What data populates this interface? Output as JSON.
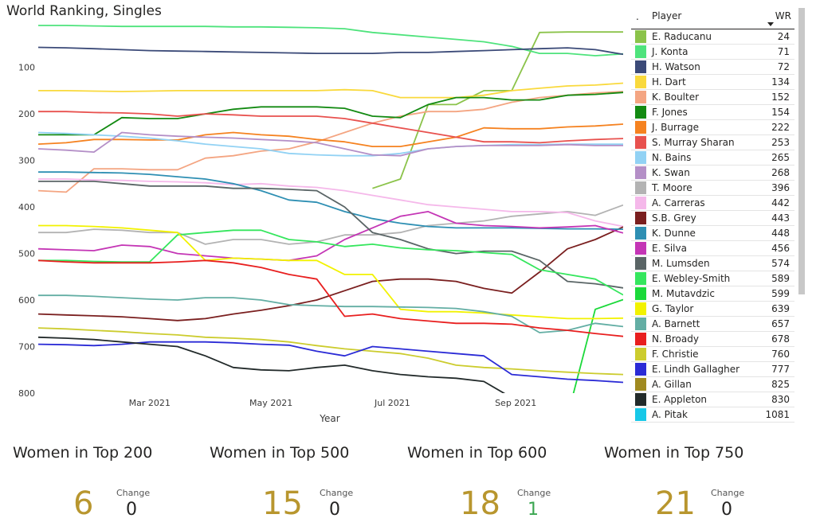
{
  "title": "World Ranking, Singles",
  "legend": {
    "dot_header": ".",
    "player_header": "Player",
    "value_header": "WR"
  },
  "chart_data": {
    "type": "line",
    "x_axis_title": "Year",
    "x_ticks": [
      "Mar 2021",
      "May 2021",
      "Jul 2021",
      "Sep 2021"
    ],
    "y_ticks": [
      100,
      200,
      300,
      400,
      500,
      600,
      700,
      800
    ],
    "y_reversed": true,
    "ylim": [
      800,
      0
    ],
    "x": [
      "2021-01-04",
      "2021-01-18",
      "2021-02-01",
      "2021-02-15",
      "2021-03-01",
      "2021-03-15",
      "2021-03-29",
      "2021-04-12",
      "2021-04-26",
      "2021-05-10",
      "2021-05-24",
      "2021-06-07",
      "2021-06-21",
      "2021-07-05",
      "2021-07-19",
      "2021-08-02",
      "2021-08-16",
      "2021-08-30",
      "2021-09-13",
      "2021-09-27",
      "2021-10-11",
      "2021-10-25"
    ],
    "series": [
      {
        "name": "E. Raducanu",
        "color": "#8bc34a",
        "wr": 24,
        "values": [
          null,
          null,
          null,
          null,
          null,
          null,
          null,
          null,
          null,
          null,
          null,
          null,
          360,
          340,
          180,
          180,
          150,
          150,
          25,
          24,
          24,
          24
        ]
      },
      {
        "name": "J. Konta",
        "color": "#4ee37c",
        "wr": 71,
        "values": [
          10,
          10,
          11,
          12,
          12,
          12,
          12,
          13,
          13,
          14,
          15,
          17,
          25,
          30,
          35,
          40,
          45,
          55,
          70,
          70,
          75,
          71
        ]
      },
      {
        "name": "H. Watson",
        "color": "#3b4a78",
        "wr": 72,
        "values": [
          57,
          58,
          60,
          62,
          64,
          65,
          66,
          67,
          68,
          69,
          70,
          70,
          70,
          68,
          68,
          66,
          64,
          62,
          60,
          58,
          62,
          72
        ]
      },
      {
        "name": "H. Dart",
        "color": "#f9d93c",
        "wr": 134,
        "values": [
          150,
          150,
          151,
          152,
          151,
          150,
          150,
          150,
          150,
          150,
          150,
          148,
          150,
          165,
          165,
          165,
          160,
          150,
          145,
          140,
          138,
          134
        ]
      },
      {
        "name": "K. Boulter",
        "color": "#f4a582",
        "wr": 152,
        "values": [
          365,
          368,
          318,
          318,
          320,
          320,
          295,
          290,
          280,
          275,
          260,
          240,
          220,
          205,
          195,
          195,
          190,
          175,
          165,
          160,
          155,
          152
        ]
      },
      {
        "name": "F. Jones",
        "color": "#138a12",
        "wr": 154,
        "values": [
          245,
          245,
          245,
          208,
          210,
          210,
          200,
          190,
          185,
          185,
          185,
          188,
          205,
          208,
          180,
          165,
          165,
          170,
          170,
          160,
          158,
          154
        ]
      },
      {
        "name": "J. Burrage",
        "color": "#f58220",
        "wr": 222,
        "values": [
          265,
          262,
          255,
          255,
          256,
          256,
          245,
          240,
          245,
          248,
          255,
          260,
          270,
          270,
          260,
          250,
          230,
          232,
          232,
          228,
          226,
          222
        ]
      },
      {
        "name": "S. Murray Sharan",
        "color": "#e8514e",
        "wr": 253,
        "values": [
          195,
          195,
          197,
          198,
          200,
          205,
          200,
          202,
          205,
          205,
          205,
          210,
          220,
          230,
          240,
          250,
          260,
          260,
          262,
          258,
          255,
          253
        ]
      },
      {
        "name": "N. Bains",
        "color": "#92d2f4",
        "wr": 265,
        "values": [
          240,
          242,
          245,
          248,
          252,
          258,
          265,
          270,
          275,
          285,
          288,
          290,
          290,
          285,
          275,
          270,
          268,
          266,
          266,
          265,
          265,
          265
        ]
      },
      {
        "name": "K. Swan",
        "color": "#b48fc7",
        "wr": 268,
        "values": [
          275,
          278,
          282,
          240,
          245,
          248,
          250,
          252,
          255,
          258,
          262,
          275,
          288,
          290,
          275,
          270,
          268,
          268,
          268,
          266,
          268,
          268
        ]
      },
      {
        "name": "T. Moore",
        "color": "#b3b3b3",
        "wr": 396,
        "values": [
          455,
          455,
          448,
          450,
          455,
          455,
          480,
          470,
          470,
          480,
          475,
          460,
          460,
          455,
          440,
          435,
          430,
          420,
          415,
          410,
          418,
          396
        ]
      },
      {
        "name": "A. Carreras",
        "color": "#f5b8ea",
        "wr": 442,
        "values": [
          340,
          340,
          342,
          343,
          345,
          346,
          348,
          352,
          350,
          355,
          358,
          365,
          375,
          385,
          395,
          400,
          405,
          410,
          410,
          412,
          430,
          442
        ]
      },
      {
        "name": "S.B. Grey",
        "color": "#7a1f1f",
        "wr": 443,
        "values": [
          630,
          632,
          634,
          636,
          640,
          644,
          640,
          630,
          622,
          612,
          600,
          580,
          560,
          555,
          555,
          560,
          575,
          585,
          540,
          490,
          470,
          443
        ]
      },
      {
        "name": "K. Dunne",
        "color": "#2e8fb3",
        "wr": 448,
        "values": [
          325,
          325,
          326,
          327,
          330,
          335,
          340,
          350,
          365,
          385,
          390,
          410,
          425,
          435,
          442,
          445,
          445,
          445,
          446,
          447,
          447,
          448
        ]
      },
      {
        "name": "E. Silva",
        "color": "#c435b5",
        "wr": 456,
        "values": [
          490,
          492,
          494,
          482,
          485,
          500,
          505,
          510,
          512,
          515,
          505,
          470,
          445,
          420,
          410,
          435,
          440,
          442,
          445,
          443,
          440,
          456
        ]
      },
      {
        "name": "M. Lumsden",
        "color": "#5a6566",
        "wr": 574,
        "values": [
          345,
          345,
          345,
          350,
          355,
          355,
          355,
          360,
          360,
          362,
          365,
          400,
          455,
          470,
          490,
          500,
          495,
          495,
          515,
          560,
          565,
          574
        ]
      },
      {
        "name": "E. Webley-Smith",
        "color": "#35e65d",
        "wr": 589,
        "values": [
          515,
          515,
          517,
          518,
          518,
          460,
          455,
          450,
          450,
          470,
          475,
          485,
          480,
          488,
          492,
          494,
          498,
          502,
          535,
          545,
          555,
          589
        ]
      },
      {
        "name": "M. Mutavdzic",
        "color": "#1bd93a",
        "wr": 599,
        "values": [
          null,
          null,
          null,
          null,
          null,
          null,
          null,
          null,
          null,
          null,
          null,
          null,
          null,
          null,
          null,
          null,
          null,
          null,
          null,
          850,
          620,
          599
        ]
      },
      {
        "name": "G. Taylor",
        "color": "#f2f200",
        "wr": 639,
        "values": [
          440,
          440,
          442,
          445,
          450,
          455,
          515,
          510,
          512,
          515,
          515,
          545,
          545,
          620,
          625,
          625,
          628,
          632,
          636,
          640,
          640,
          639
        ]
      },
      {
        "name": "A. Barnett",
        "color": "#63aea4",
        "wr": 657,
        "values": [
          590,
          590,
          592,
          595,
          598,
          600,
          595,
          595,
          600,
          610,
          612,
          614,
          614,
          615,
          616,
          618,
          625,
          635,
          670,
          665,
          650,
          657
        ]
      },
      {
        "name": "N. Broady",
        "color": "#e81f1f",
        "wr": 678,
        "values": [
          515,
          518,
          520,
          520,
          520,
          518,
          515,
          520,
          530,
          545,
          555,
          635,
          630,
          640,
          645,
          650,
          650,
          652,
          660,
          665,
          672,
          678
        ]
      },
      {
        "name": "F. Christie",
        "color": "#cccc2e",
        "wr": 760,
        "values": [
          660,
          662,
          665,
          668,
          672,
          675,
          680,
          682,
          685,
          690,
          698,
          705,
          710,
          715,
          725,
          740,
          745,
          748,
          752,
          755,
          758,
          760
        ]
      },
      {
        "name": "E. Lindh Gallagher",
        "color": "#2b2bd6",
        "wr": 777,
        "values": [
          695,
          696,
          698,
          695,
          690,
          690,
          690,
          692,
          695,
          697,
          710,
          720,
          700,
          705,
          710,
          715,
          720,
          760,
          765,
          770,
          773,
          777
        ]
      },
      {
        "name": "A. Gillan",
        "color": "#a08a20",
        "wr": 825,
        "values": [
          null,
          null,
          null,
          null,
          null,
          null,
          null,
          null,
          null,
          null,
          null,
          null,
          null,
          null,
          null,
          null,
          null,
          null,
          null,
          null,
          null,
          null
        ]
      },
      {
        "name": "E. Appleton",
        "color": "#222a2a",
        "wr": 830,
        "values": [
          680,
          682,
          685,
          690,
          695,
          700,
          720,
          745,
          750,
          752,
          745,
          740,
          752,
          760,
          765,
          768,
          775,
          810,
          830,
          null,
          null,
          null
        ]
      },
      {
        "name": "A. Pitak",
        "color": "#17c8e8",
        "wr": 1081,
        "values": [
          null,
          null,
          null,
          null,
          null,
          null,
          null,
          null,
          null,
          null,
          null,
          null,
          null,
          null,
          null,
          null,
          null,
          null,
          null,
          null,
          null,
          null
        ]
      }
    ]
  },
  "kpis": [
    {
      "label": "Women in Top 200",
      "value": "6",
      "change_label": "Change",
      "change": "0",
      "change_color": "#252423"
    },
    {
      "label": "Women in Top 500",
      "value": "15",
      "change_label": "Change",
      "change": "0",
      "change_color": "#252423"
    },
    {
      "label": "Women in Top 600",
      "value": "18",
      "change_label": "Change",
      "change": "1",
      "change_color": "#3aa650"
    },
    {
      "label": "Women in Top 750",
      "value": "21",
      "change_label": "Change",
      "change": "0",
      "change_color": "#252423"
    }
  ]
}
